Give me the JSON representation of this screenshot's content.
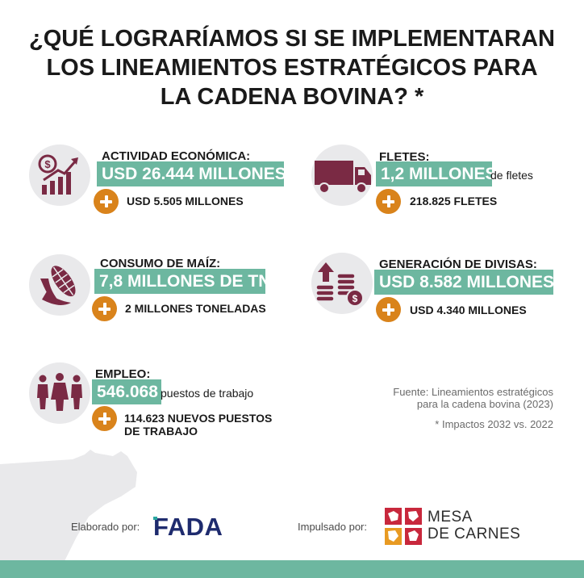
{
  "title": {
    "line1": "¿QUÉ LOGRARÍAMOS SI SE IMPLEMENTARAN",
    "line2": "LOS LINEAMIENTOS ESTRATÉGICOS PARA",
    "line3": "LA CADENA BOVINA? *"
  },
  "colors": {
    "accent_green": "#6db7a0",
    "plus_orange": "#d9831b",
    "icon_maroon": "#7a2a44",
    "icon_bg": "#e9e9eb"
  },
  "metrics": {
    "actividad": {
      "icon": "dollar-growth-chart-icon",
      "label": "ACTIVIDAD ECONÓMICA:",
      "value": "USD 26.444 MILLONES",
      "suffix": "",
      "extra": "USD 5.505 MILLONES"
    },
    "fletes": {
      "icon": "truck-icon",
      "label": "FLETES:",
      "value": "1,2 MILLONES",
      "suffix": "de fletes",
      "extra": "218.825 FLETES"
    },
    "maiz": {
      "icon": "corn-icon",
      "label": "CONSUMO DE MAÍZ:",
      "value": "7,8 MILLONES DE TN",
      "suffix": "",
      "extra": "2 MILLONES TONELADAS"
    },
    "divisas": {
      "icon": "coins-arrow-icon",
      "label": "GENERACIÓN DE DIVISAS:",
      "value": "USD 8.582 MILLONES",
      "suffix": "",
      "extra": "USD 4.340 MILLONES"
    },
    "empleo": {
      "icon": "people-icon",
      "label": "EMPLEO:",
      "value": "546.068",
      "suffix": "puestos de trabajo",
      "extra_line1": "114.623 NUEVOS PUESTOS",
      "extra_line2": "DE TRABAJO"
    }
  },
  "source": {
    "line1": "Fuente: Lineamientos estratégicos",
    "line2": "para la cadena bovina (2023)"
  },
  "note": "* Impactos 2032 vs. 2022",
  "credits": {
    "elaborado": "Elaborado por:",
    "fada_logo_text": "FADA",
    "impulsado": "Impulsado por:",
    "mesa_line1": "MESA",
    "mesa_line2": "DE CARNES"
  }
}
